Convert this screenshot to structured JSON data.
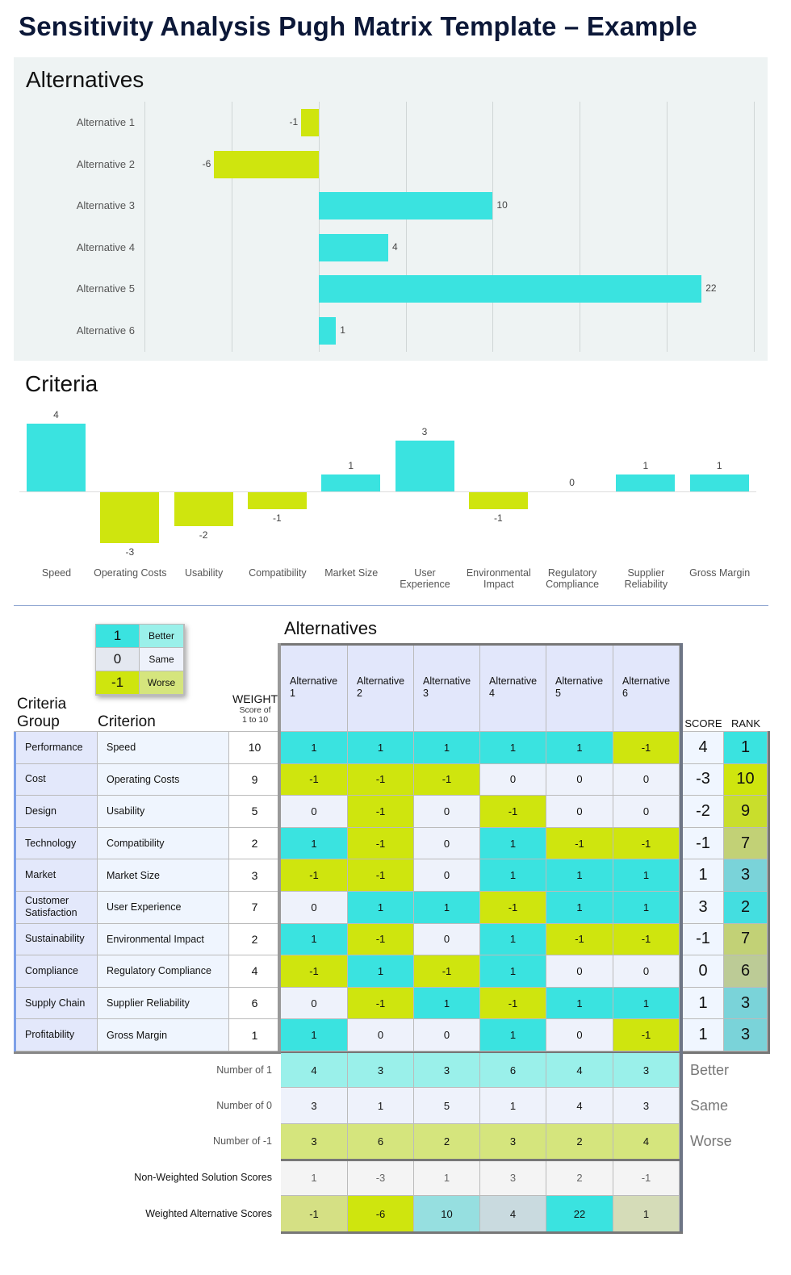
{
  "title": "Sensitivity Analysis Pugh Matrix Template – Example",
  "colors": {
    "better": "#3ae3e0",
    "worse": "#cfe50e",
    "same": "#eef2fb",
    "panel": "#eef3f3"
  },
  "chart_data": [
    {
      "type": "bar",
      "orientation": "horizontal",
      "title": "Alternatives",
      "categories": [
        "Alternative 1",
        "Alternative 2",
        "Alternative 3",
        "Alternative 4",
        "Alternative 5",
        "Alternative 6"
      ],
      "values": [
        -1,
        -6,
        10,
        4,
        22,
        1
      ],
      "xlim": [
        -10,
        25
      ],
      "grid": true,
      "colors": {
        "positive": "#3ae3e0",
        "negative": "#cfe50e"
      }
    },
    {
      "type": "bar",
      "title": "Criteria",
      "categories": [
        "Speed",
        "Operating Costs",
        "Usability",
        "Compatibility",
        "Market Size",
        "User Experience",
        "Environmental Impact",
        "Regulatory Compliance",
        "Supplier Reliability",
        "Gross Margin"
      ],
      "values": [
        4,
        -3,
        -2,
        -1,
        1,
        3,
        -1,
        0,
        1,
        1
      ],
      "grid": false,
      "colors": {
        "positive": "#3ae3e0",
        "negative": "#cfe50e"
      }
    }
  ],
  "legend": [
    {
      "value": "1",
      "label": "Better"
    },
    {
      "value": "0",
      "label": "Same"
    },
    {
      "value": "-1",
      "label": "Worse"
    }
  ],
  "matrix": {
    "alternatives_title": "Alternatives",
    "headers": {
      "group_line1": "Criteria",
      "group_line2": "Group",
      "criterion": "Criterion",
      "weight": "WEIGHT",
      "weight_sub1": "Score of",
      "weight_sub2": "1 to 10",
      "score": "SCORE",
      "rank": "RANK"
    },
    "alternatives": [
      {
        "line1": "Alternative",
        "line2": "1"
      },
      {
        "line1": "Alternative",
        "line2": "2"
      },
      {
        "line1": "Alternative",
        "line2": "3"
      },
      {
        "line1": "Alternative",
        "line2": "4"
      },
      {
        "line1": "Alternative",
        "line2": "5"
      },
      {
        "line1": "Alternative",
        "line2": "6"
      }
    ],
    "rows": [
      {
        "group": "Performance",
        "criterion": "Speed",
        "weight": "10",
        "scores": [
          "1",
          "1",
          "1",
          "1",
          "1",
          "-1"
        ],
        "score": "4",
        "rank": "1",
        "rank_color": "#3ae3e0"
      },
      {
        "group": "Cost",
        "criterion": "Operating Costs",
        "weight": "9",
        "scores": [
          "-1",
          "-1",
          "-1",
          "0",
          "0",
          "0"
        ],
        "score": "-3",
        "rank": "10",
        "rank_color": "#cfe50e"
      },
      {
        "group": "Design",
        "criterion": "Usability",
        "weight": "5",
        "scores": [
          "0",
          "-1",
          "0",
          "-1",
          "0",
          "0"
        ],
        "score": "-2",
        "rank": "9",
        "rank_color": "#c9de2c"
      },
      {
        "group": "Technology",
        "criterion": "Compatibility",
        "weight": "2",
        "scores": [
          "1",
          "-1",
          "0",
          "1",
          "-1",
          "-1"
        ],
        "score": "-1",
        "rank": "7",
        "rank_color": "#c2d176"
      },
      {
        "group": "Market",
        "criterion": "Market Size",
        "weight": "3",
        "scores": [
          "-1",
          "-1",
          "0",
          "1",
          "1",
          "1"
        ],
        "score": "1",
        "rank": "3",
        "rank_color": "#7ad3d9"
      },
      {
        "group": "Customer Satisfaction",
        "criterion": "User Experience",
        "weight": "7",
        "scores": [
          "0",
          "1",
          "1",
          "-1",
          "1",
          "1"
        ],
        "score": "3",
        "rank": "2",
        "rank_color": "#44dee0"
      },
      {
        "group": "Sustainability",
        "criterion": "Environmental Impact",
        "weight": "2",
        "scores": [
          "1",
          "-1",
          "0",
          "1",
          "-1",
          "-1"
        ],
        "score": "-1",
        "rank": "7",
        "rank_color": "#c2d176"
      },
      {
        "group": "Compliance",
        "criterion": "Regulatory Compliance",
        "weight": "4",
        "scores": [
          "-1",
          "1",
          "-1",
          "1",
          "0",
          "0"
        ],
        "score": "0",
        "rank": "6",
        "rank_color": "#bccb96"
      },
      {
        "group": "Supply Chain",
        "criterion": "Supplier Reliability",
        "weight": "6",
        "scores": [
          "0",
          "-1",
          "1",
          "-1",
          "1",
          "1"
        ],
        "score": "1",
        "rank": "3",
        "rank_color": "#7ad3d9"
      },
      {
        "group": "Profitability",
        "criterion": "Gross Margin",
        "weight": "1",
        "scores": [
          "1",
          "0",
          "0",
          "1",
          "0",
          "-1"
        ],
        "score": "1",
        "rank": "3",
        "rank_color": "#7ad3d9"
      }
    ],
    "summary": [
      {
        "label": "Number of 1",
        "values": [
          "4",
          "3",
          "3",
          "6",
          "4",
          "3"
        ],
        "side": "Better",
        "color": "#9af0ea"
      },
      {
        "label": "Number of 0",
        "values": [
          "3",
          "1",
          "5",
          "1",
          "4",
          "3"
        ],
        "side": "Same",
        "color": "#eef2fb"
      },
      {
        "label": "Number of -1",
        "values": [
          "3",
          "6",
          "2",
          "3",
          "2",
          "4"
        ],
        "side": "Worse",
        "color": "#d5e57d"
      },
      {
        "label": "Non-Weighted Solution Scores",
        "values": [
          "1",
          "-3",
          "1",
          "3",
          "2",
          "-1"
        ],
        "color": "#f4f4f4"
      },
      {
        "label": "Weighted Alternative Scores",
        "values": [
          "-1",
          "-6",
          "10",
          "4",
          "22",
          "1"
        ],
        "cell_colors": [
          "#d5e084",
          "#cfe50e",
          "#96dfe0",
          "#c9dadf",
          "#3ae3e0",
          "#d5dcb8"
        ]
      }
    ]
  }
}
